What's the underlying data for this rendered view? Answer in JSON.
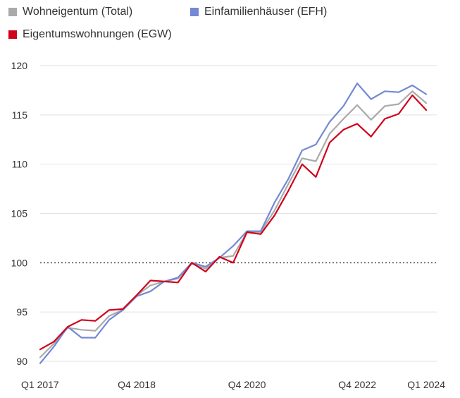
{
  "chart_data": {
    "type": "line",
    "title": "",
    "xlabel": "",
    "ylabel": "",
    "x": [
      "Q1 2017",
      "Q2 2017",
      "Q3 2017",
      "Q4 2017",
      "Q1 2018",
      "Q2 2018",
      "Q3 2018",
      "Q4 2018",
      "Q1 2019",
      "Q2 2019",
      "Q3 2019",
      "Q4 2019",
      "Q1 2020",
      "Q2 2020",
      "Q3 2020",
      "Q4 2020",
      "Q1 2021",
      "Q2 2021",
      "Q3 2021",
      "Q4 2021",
      "Q1 2022",
      "Q2 2022",
      "Q3 2022",
      "Q4 2022",
      "Q1 2023",
      "Q2 2023",
      "Q3 2023",
      "Q4 2023",
      "Q1 2024"
    ],
    "x_tick_labels": [
      "Q1 2017",
      "Q4 2018",
      "Q4 2020",
      "Q4 2022",
      "Q1 2024"
    ],
    "ylim": [
      90,
      120
    ],
    "y_ticks": [
      90,
      95,
      100,
      105,
      110,
      115,
      120
    ],
    "reference_line": 100,
    "grid": "horizontal",
    "legend_position": "top",
    "series": [
      {
        "name": "Wohneigentum (Total)",
        "color": "#aaaaaa",
        "values": [
          90.4,
          91.8,
          93.4,
          93.2,
          93.1,
          94.6,
          95.2,
          96.7,
          97.7,
          98.1,
          98.4,
          99.9,
          99.4,
          100.5,
          100.7,
          103.1,
          103.1,
          105.3,
          108.0,
          110.6,
          110.3,
          113.1,
          114.6,
          116.0,
          114.5,
          115.9,
          116.1,
          117.4,
          116.2
        ]
      },
      {
        "name": "Einfamilienhäuser (EFH)",
        "color": "#7389d4",
        "values": [
          89.8,
          91.5,
          93.5,
          92.4,
          92.4,
          94.2,
          95.2,
          96.6,
          97.1,
          98.1,
          98.5,
          100.0,
          99.6,
          100.5,
          101.7,
          103.2,
          103.2,
          106.1,
          108.5,
          111.4,
          112.0,
          114.3,
          115.9,
          118.2,
          116.6,
          117.4,
          117.3,
          118.0,
          117.1
        ]
      },
      {
        "name": "Eigentumswohnungen (EGW)",
        "color": "#d0021b",
        "values": [
          91.2,
          92.0,
          93.5,
          94.2,
          94.1,
          95.2,
          95.3,
          96.7,
          98.2,
          98.1,
          98.0,
          100.0,
          99.1,
          100.6,
          100.0,
          103.1,
          102.9,
          104.8,
          107.3,
          110.0,
          108.7,
          112.2,
          113.5,
          114.1,
          112.8,
          114.6,
          115.1,
          117.0,
          115.5
        ]
      }
    ]
  }
}
